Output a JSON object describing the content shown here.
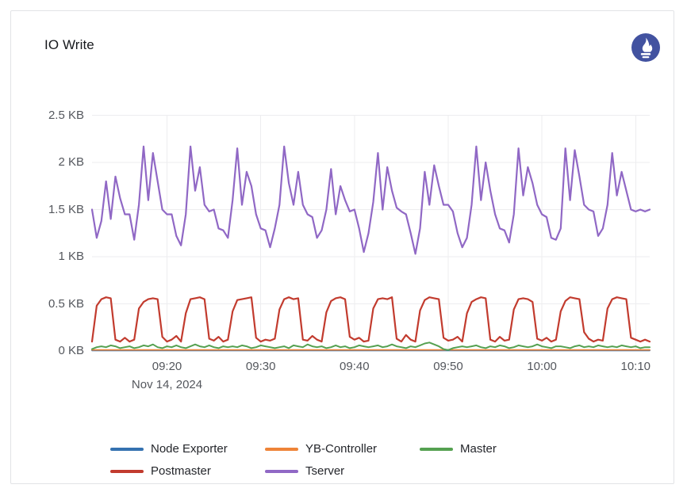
{
  "panel": {
    "title": "IO Write",
    "datasource_icon": "prometheus-icon",
    "datasource_icon_color": "#4252a0"
  },
  "chart_data": {
    "type": "line",
    "title": "IO Write",
    "unit": "KB",
    "grid": true,
    "legend_position": "bottom-center",
    "ylim": [
      0,
      2.5
    ],
    "y_axis": {
      "tick_values": [
        0,
        0.5,
        1,
        1.5,
        2,
        2.5
      ],
      "tick_labels": [
        "0 KB",
        "0.5 KB",
        "1 KB",
        "1.5 KB",
        "2 KB",
        "2.5 KB"
      ]
    },
    "x_axis": {
      "date_label": "Nov 14, 2024",
      "start_minutes": 552,
      "end_minutes": 611.5,
      "interval_seconds": 30,
      "tick_minutes": [
        560,
        570,
        580,
        590,
        600,
        610
      ],
      "tick_labels": [
        "09:20",
        "09:30",
        "09:40",
        "09:50",
        "10:00",
        "10:10"
      ]
    },
    "series": [
      {
        "name": "Node Exporter",
        "color": "#3572b0",
        "width": 1.8,
        "constant": 0.005
      },
      {
        "name": "YB-Controller",
        "color": "#ee8438",
        "width": 1.8,
        "constant": 0.012
      },
      {
        "name": "Master",
        "color": "#55a151",
        "width": 2,
        "values": [
          0.02,
          0.04,
          0.05,
          0.04,
          0.06,
          0.05,
          0.03,
          0.04,
          0.05,
          0.03,
          0.04,
          0.06,
          0.05,
          0.07,
          0.04,
          0.03,
          0.05,
          0.04,
          0.06,
          0.04,
          0.03,
          0.05,
          0.07,
          0.05,
          0.04,
          0.06,
          0.04,
          0.03,
          0.05,
          0.04,
          0.05,
          0.04,
          0.06,
          0.05,
          0.03,
          0.04,
          0.06,
          0.05,
          0.04,
          0.03,
          0.04,
          0.05,
          0.03,
          0.06,
          0.05,
          0.04,
          0.07,
          0.05,
          0.04,
          0.05,
          0.03,
          0.04,
          0.06,
          0.04,
          0.05,
          0.03,
          0.04,
          0.06,
          0.05,
          0.04,
          0.05,
          0.06,
          0.04,
          0.05,
          0.07,
          0.05,
          0.04,
          0.03,
          0.05,
          0.04,
          0.06,
          0.08,
          0.09,
          0.07,
          0.05,
          0.02,
          0.01,
          0.03,
          0.04,
          0.05,
          0.04,
          0.05,
          0.06,
          0.04,
          0.03,
          0.05,
          0.04,
          0.06,
          0.05,
          0.03,
          0.04,
          0.06,
          0.05,
          0.04,
          0.05,
          0.07,
          0.05,
          0.04,
          0.03,
          0.05,
          0.05,
          0.04,
          0.03,
          0.05,
          0.06,
          0.04,
          0.05,
          0.04,
          0.06,
          0.05,
          0.04,
          0.05,
          0.04,
          0.06,
          0.05,
          0.04,
          0.05,
          0.03,
          0.04,
          0.04
        ]
      },
      {
        "name": "Postmaster",
        "color": "#c23b2e",
        "width": 2.2,
        "values": [
          0.1,
          0.48,
          0.55,
          0.57,
          0.56,
          0.12,
          0.1,
          0.14,
          0.1,
          0.12,
          0.45,
          0.52,
          0.55,
          0.56,
          0.55,
          0.15,
          0.1,
          0.12,
          0.16,
          0.1,
          0.4,
          0.55,
          0.56,
          0.57,
          0.55,
          0.13,
          0.11,
          0.15,
          0.1,
          0.12,
          0.42,
          0.54,
          0.55,
          0.56,
          0.57,
          0.14,
          0.1,
          0.12,
          0.11,
          0.13,
          0.44,
          0.55,
          0.57,
          0.55,
          0.56,
          0.12,
          0.11,
          0.16,
          0.12,
          0.1,
          0.41,
          0.53,
          0.56,
          0.57,
          0.55,
          0.15,
          0.12,
          0.14,
          0.1,
          0.11,
          0.45,
          0.55,
          0.56,
          0.55,
          0.57,
          0.13,
          0.1,
          0.17,
          0.12,
          0.1,
          0.43,
          0.54,
          0.57,
          0.56,
          0.55,
          0.14,
          0.11,
          0.12,
          0.15,
          0.1,
          0.4,
          0.52,
          0.55,
          0.57,
          0.56,
          0.12,
          0.1,
          0.15,
          0.11,
          0.12,
          0.44,
          0.55,
          0.56,
          0.55,
          0.52,
          0.13,
          0.11,
          0.14,
          0.1,
          0.12,
          0.42,
          0.53,
          0.57,
          0.56,
          0.55,
          0.2,
          0.13,
          0.1,
          0.12,
          0.11,
          0.45,
          0.55,
          0.57,
          0.56,
          0.55,
          0.14,
          0.12,
          0.1,
          0.12,
          0.1
        ]
      },
      {
        "name": "Tserver",
        "color": "#9068c5",
        "width": 2.2,
        "values": [
          1.5,
          1.2,
          1.38,
          1.8,
          1.4,
          1.85,
          1.62,
          1.45,
          1.45,
          1.18,
          1.55,
          2.17,
          1.6,
          2.1,
          1.8,
          1.5,
          1.45,
          1.45,
          1.22,
          1.12,
          1.45,
          2.17,
          1.7,
          1.95,
          1.55,
          1.48,
          1.5,
          1.3,
          1.28,
          1.2,
          1.6,
          2.15,
          1.55,
          1.9,
          1.75,
          1.45,
          1.3,
          1.28,
          1.1,
          1.3,
          1.55,
          2.17,
          1.78,
          1.55,
          1.9,
          1.55,
          1.45,
          1.42,
          1.2,
          1.28,
          1.5,
          1.93,
          1.45,
          1.75,
          1.6,
          1.48,
          1.5,
          1.3,
          1.05,
          1.25,
          1.58,
          2.1,
          1.5,
          1.95,
          1.7,
          1.52,
          1.48,
          1.45,
          1.25,
          1.03,
          1.3,
          1.9,
          1.55,
          1.97,
          1.75,
          1.55,
          1.55,
          1.48,
          1.25,
          1.1,
          1.2,
          1.55,
          2.17,
          1.6,
          2.0,
          1.7,
          1.45,
          1.3,
          1.28,
          1.15,
          1.45,
          2.15,
          1.65,
          1.95,
          1.78,
          1.55,
          1.45,
          1.42,
          1.2,
          1.18,
          1.3,
          2.15,
          1.6,
          2.13,
          1.85,
          1.55,
          1.5,
          1.48,
          1.22,
          1.3,
          1.55,
          2.1,
          1.65,
          1.9,
          1.7,
          1.5,
          1.48,
          1.5,
          1.48,
          1.5
        ]
      }
    ]
  },
  "colors": {
    "grid": "#ededef",
    "axis_text": "#54575d",
    "legend_text": "#24262b",
    "panel_border": "#e2e3e6",
    "background": "#ffffff"
  }
}
